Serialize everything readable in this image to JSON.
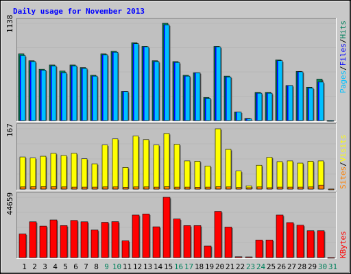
{
  "chart_data": {
    "type": "bar",
    "title": "Daily usage for November 2013",
    "categories": [
      "1",
      "2",
      "3",
      "4",
      "5",
      "6",
      "7",
      "8",
      "9",
      "10",
      "11",
      "12",
      "13",
      "14",
      "15",
      "16",
      "17",
      "18",
      "19",
      "20",
      "21",
      "22",
      "23",
      "24",
      "25",
      "26",
      "27",
      "28",
      "29",
      "30",
      "31"
    ],
    "weekend_days": [
      "9",
      "10",
      "16",
      "17",
      "23",
      "24",
      "30",
      "31"
    ],
    "panels": [
      {
        "name": "hits-files-pages",
        "max_label": "1138",
        "ylim": [
          0,
          1138
        ],
        "legend": {
          "pages": "Pages",
          "files": "Files",
          "hits": "Hits",
          "sep": "/"
        },
        "series": [
          {
            "name": "Hits",
            "values": [
              780,
              700,
              600,
              650,
              580,
              650,
              620,
              530,
              780,
              810,
              340,
              910,
              870,
              700,
              1138,
              690,
              530,
              560,
              270,
              870,
              520,
              100,
              25,
              330,
              330,
              710,
              410,
              575,
              390,
              485
            ]
          },
          {
            "name": "Files",
            "values": [
              760,
              690,
              590,
              640,
              560,
              640,
              610,
              520,
              770,
              800,
              340,
              900,
              860,
              690,
              1120,
              680,
              520,
              560,
              260,
              860,
              510,
              100,
              20,
              320,
              320,
              700,
              410,
              570,
              380,
              450
            ]
          },
          {
            "name": "Pages",
            "values": [
              0,
              0,
              0,
              0,
              0,
              0,
              0,
              0,
              0,
              0,
              0,
              0,
              0,
              0,
              0,
              0,
              0,
              0,
              0,
              0,
              0,
              0,
              0,
              0,
              0,
              0,
              0,
              0,
              0,
              0
            ]
          }
        ]
      },
      {
        "name": "visits-sites",
        "max_label": "167",
        "ylim": [
          0,
          167
        ],
        "legend": {
          "sites": "Sites",
          "visits": "Visits",
          "sep": "/"
        },
        "series": [
          {
            "name": "Visits",
            "values": [
              89,
              86,
              91,
              99,
              93,
              99,
              84,
              70,
              122,
              139,
              60,
              147,
              137,
              122,
              154,
              124,
              78,
              77,
              64,
              167,
              110,
              50,
              9,
              66,
              88,
              76,
              78,
              72,
              77,
              78
            ]
          },
          {
            "name": "Sites",
            "values": [
              11,
              12,
              12,
              12,
              11,
              10,
              10,
              10,
              11,
              11,
              9,
              11,
              11,
              10,
              12,
              10,
              10,
              9,
              10,
              12,
              11,
              8,
              7,
              11,
              7,
              10,
              10,
              10,
              11,
              20
            ]
          }
        ]
      },
      {
        "name": "kbytes",
        "max_label": "44659",
        "ylim": [
          0,
          44659
        ],
        "legend": {
          "kbytes": "KBytes"
        },
        "series": [
          {
            "name": "KBytes",
            "values": [
              17500,
              26500,
              23300,
              27900,
              23700,
              27500,
              26500,
              20400,
              26100,
              26600,
              12400,
              31500,
              32300,
              22800,
              44659,
              28600,
              23700,
              23700,
              8600,
              34200,
              22600,
              600,
              500,
              13000,
              13000,
              31500,
              25900,
              24000,
              19900,
              19900
            ]
          }
        ]
      }
    ],
    "colors": {
      "hits": "#00805c",
      "files": "#0000ff",
      "pages": "#00c0ff",
      "visits": "#ffff00",
      "sites": "#ff8000",
      "kbytes": "#ff0000",
      "title": "#0000ff",
      "weekend": "#00805c",
      "weekday": "#000000"
    }
  }
}
